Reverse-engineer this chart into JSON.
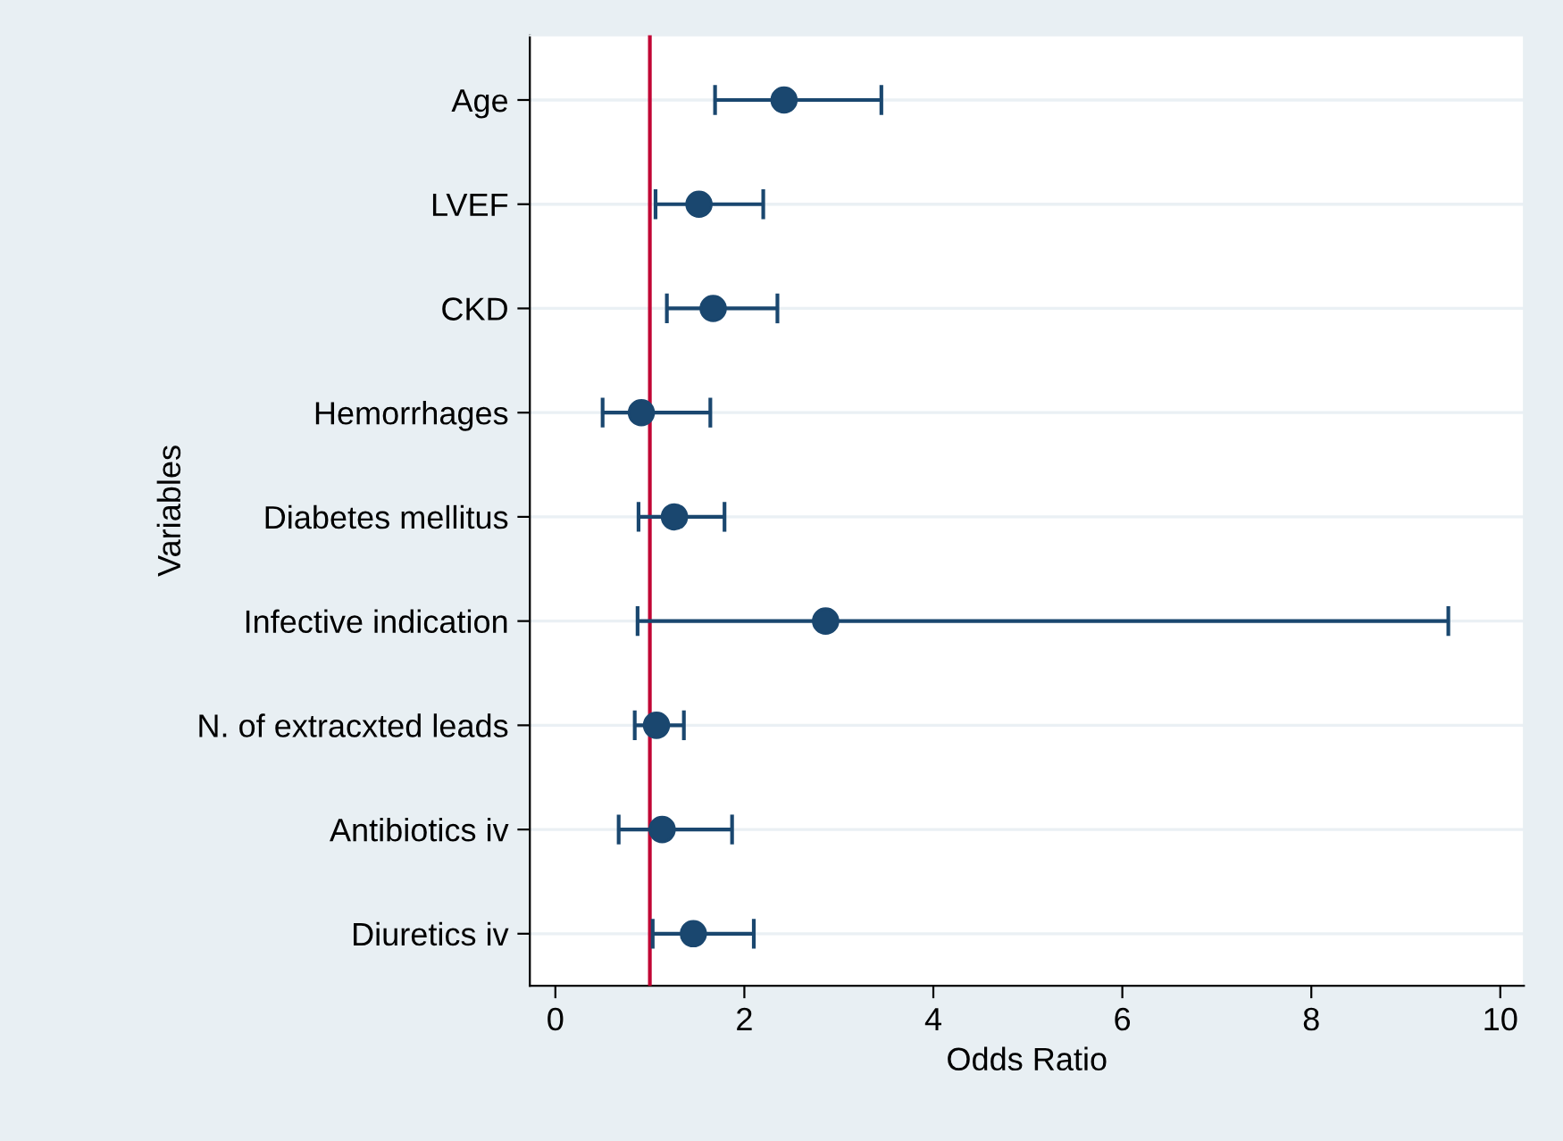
{
  "chart_data": {
    "type": "scatter",
    "orientation": "horizontal",
    "xlabel": "Odds Ratio",
    "ylabel": "Variables",
    "categories": [
      "Age",
      "LVEF",
      "CKD",
      "Hemorrhages",
      "Diabetes mellitus",
      "Infective indication",
      "N. of extracxted leads",
      "Antibiotics iv",
      "Diuretics iv"
    ],
    "values": [
      2.42,
      1.52,
      1.67,
      0.91,
      1.26,
      2.86,
      1.07,
      1.13,
      1.46
    ],
    "errors": [
      [
        1.69,
        3.45
      ],
      [
        1.06,
        2.2
      ],
      [
        1.18,
        2.35
      ],
      [
        0.5,
        1.64
      ],
      [
        0.88,
        1.79
      ],
      [
        0.87,
        9.45
      ],
      [
        0.84,
        1.36
      ],
      [
        0.67,
        1.87
      ],
      [
        1.03,
        2.1
      ]
    ],
    "color": "#1a476f",
    "marker": "circle",
    "xlim": [
      -0.27,
      10.25
    ],
    "xticks": [
      0,
      2,
      4,
      6,
      8,
      10
    ],
    "grid": "y",
    "ref_lines": [
      {
        "axis": "x",
        "value": 1,
        "color": "#c10534"
      }
    ]
  }
}
